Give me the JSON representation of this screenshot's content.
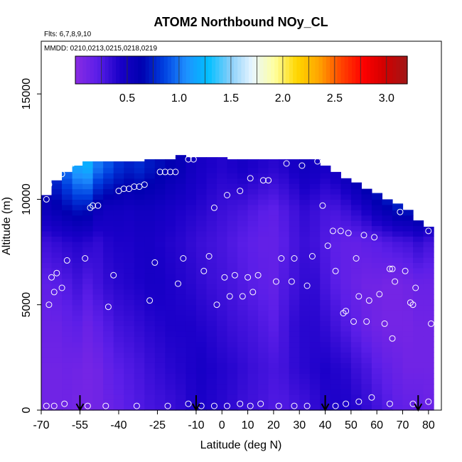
{
  "chart_data": {
    "type": "heatmap",
    "title": "ATOM2 Northbound NOy_CL",
    "notes": [
      "Flts: 6,7,8,9,10",
      "MMDD: 0210,0213,0215,0218,0219"
    ],
    "xlabel": "Latitude (deg N)",
    "ylabel": "Altitude (m)",
    "xlim": [
      -70,
      85
    ],
    "ylim": [
      0,
      17500
    ],
    "x_ticks": [
      -70,
      -55,
      -40,
      -25,
      -10,
      0,
      10,
      20,
      30,
      40,
      50,
      60,
      70,
      80
    ],
    "x_tick_labels": [
      "-70",
      "-55",
      "-40",
      "-25",
      "-10",
      "0",
      "10",
      "20",
      "30",
      "40",
      "50",
      "60",
      "70",
      "80"
    ],
    "y_ticks": [
      0,
      5000,
      10000,
      15000
    ],
    "y_tick_labels": [
      "0",
      "5000",
      "10000",
      "15000"
    ],
    "colorbar": {
      "range": [
        0,
        3.2
      ],
      "ticks": [
        0.5,
        1.0,
        1.5,
        2.0,
        2.5,
        3.0
      ],
      "tick_labels": [
        "0.5",
        "1.0",
        "1.5",
        "2.0",
        "2.5",
        "3.0"
      ],
      "colors": [
        "#8a2be2",
        "#5b1ee8",
        "#1a00c8",
        "#0000b0",
        "#0040e0",
        "#1e90ff",
        "#00bfff",
        "#87cefa",
        "#e8f6ff",
        "#ffffa0",
        "#ffd700",
        "#ffa500",
        "#ff4500",
        "#ff0000",
        "#d00000",
        "#a01818"
      ]
    },
    "field_columns": [
      {
        "x": -68,
        "top": 10200,
        "v": [
          0.12,
          0.12,
          0.15,
          0.2,
          0.32,
          0.55,
          0.7
        ]
      },
      {
        "x": -64,
        "top": 10900,
        "v": [
          0.12,
          0.12,
          0.15,
          0.22,
          0.35,
          0.6,
          0.85
        ]
      },
      {
        "x": -60,
        "top": 11300,
        "v": [
          0.12,
          0.13,
          0.18,
          0.25,
          0.38,
          0.65,
          1.0
        ]
      },
      {
        "x": -56,
        "top": 11600,
        "v": [
          0.1,
          0.12,
          0.2,
          0.3,
          0.4,
          0.7,
          1.15
        ]
      },
      {
        "x": -52,
        "top": 11800,
        "v": [
          0.1,
          0.1,
          0.15,
          0.25,
          0.38,
          0.68,
          1.2
        ]
      },
      {
        "x": -48,
        "top": 11800,
        "v": [
          0.12,
          0.12,
          0.2,
          0.3,
          0.35,
          0.55,
          1.0
        ]
      },
      {
        "x": -44,
        "top": 11800,
        "v": [
          0.15,
          0.18,
          0.25,
          0.35,
          0.4,
          0.5,
          0.9
        ]
      },
      {
        "x": -40,
        "top": 11800,
        "v": [
          0.18,
          0.22,
          0.3,
          0.38,
          0.42,
          0.5,
          0.8
        ]
      },
      {
        "x": -36,
        "top": 11800,
        "v": [
          0.22,
          0.25,
          0.32,
          0.4,
          0.42,
          0.48,
          0.75
        ]
      },
      {
        "x": -32,
        "top": 11800,
        "v": [
          0.25,
          0.28,
          0.35,
          0.42,
          0.45,
          0.5,
          0.78
        ]
      },
      {
        "x": -28,
        "top": 11900,
        "v": [
          0.28,
          0.32,
          0.38,
          0.45,
          0.45,
          0.5,
          0.72
        ]
      },
      {
        "x": -24,
        "top": 11900,
        "v": [
          0.3,
          0.35,
          0.4,
          0.45,
          0.42,
          0.48,
          0.68
        ]
      },
      {
        "x": -20,
        "top": 11900,
        "v": [
          0.32,
          0.38,
          0.42,
          0.42,
          0.4,
          0.45,
          0.62
        ]
      },
      {
        "x": -16,
        "top": 12100,
        "v": [
          0.35,
          0.4,
          0.42,
          0.4,
          0.38,
          0.42,
          0.58
        ]
      },
      {
        "x": -12,
        "top": 12000,
        "v": [
          0.4,
          0.42,
          0.42,
          0.38,
          0.35,
          0.4,
          0.5
        ]
      },
      {
        "x": -8,
        "top": 12000,
        "v": [
          0.42,
          0.45,
          0.4,
          0.35,
          0.32,
          0.38,
          0.45
        ]
      },
      {
        "x": -4,
        "top": 12000,
        "v": [
          0.4,
          0.42,
          0.38,
          0.32,
          0.3,
          0.35,
          0.42
        ]
      },
      {
        "x": 0,
        "top": 12000,
        "v": [
          0.38,
          0.4,
          0.35,
          0.3,
          0.28,
          0.32,
          0.4
        ]
      },
      {
        "x": 4,
        "top": 11900,
        "v": [
          0.35,
          0.38,
          0.32,
          0.28,
          0.25,
          0.3,
          0.42
        ]
      },
      {
        "x": 8,
        "top": 11900,
        "v": [
          0.32,
          0.35,
          0.3,
          0.25,
          0.22,
          0.28,
          0.45
        ]
      },
      {
        "x": 12,
        "top": 11900,
        "v": [
          0.3,
          0.32,
          0.28,
          0.22,
          0.2,
          0.25,
          0.42
        ]
      },
      {
        "x": 16,
        "top": 11900,
        "v": [
          0.28,
          0.3,
          0.25,
          0.2,
          0.18,
          0.22,
          0.4
        ]
      },
      {
        "x": 20,
        "top": 11900,
        "v": [
          0.25,
          0.28,
          0.22,
          0.18,
          0.18,
          0.2,
          0.38
        ]
      },
      {
        "x": 24,
        "top": 11900,
        "v": [
          0.25,
          0.3,
          0.28,
          0.25,
          0.22,
          0.25,
          0.4
        ]
      },
      {
        "x": 28,
        "top": 11900,
        "v": [
          0.28,
          0.35,
          0.35,
          0.3,
          0.28,
          0.3,
          0.45
        ]
      },
      {
        "x": 32,
        "top": 11900,
        "v": [
          0.3,
          0.38,
          0.38,
          0.35,
          0.32,
          0.35,
          0.5
        ]
      },
      {
        "x": 36,
        "top": 11900,
        "v": [
          0.35,
          0.4,
          0.38,
          0.35,
          0.3,
          0.32,
          0.48
        ]
      },
      {
        "x": 40,
        "top": 11600,
        "v": [
          0.4,
          0.42,
          0.35,
          0.28,
          0.25,
          0.28,
          0.45
        ]
      },
      {
        "x": 44,
        "top": 11300,
        "v": [
          0.42,
          0.4,
          0.3,
          0.22,
          0.2,
          0.28,
          0.5
        ]
      },
      {
        "x": 48,
        "top": 11000,
        "v": [
          0.42,
          0.38,
          0.25,
          0.18,
          0.18,
          0.32,
          0.6
        ]
      },
      {
        "x": 52,
        "top": 10800,
        "v": [
          0.4,
          0.32,
          0.2,
          0.15,
          0.18,
          0.38,
          0.72
        ]
      },
      {
        "x": 56,
        "top": 10500,
        "v": [
          0.35,
          0.28,
          0.15,
          0.12,
          0.2,
          0.45,
          0.85
        ]
      },
      {
        "x": 60,
        "top": 10300,
        "v": [
          0.3,
          0.22,
          0.12,
          0.12,
          0.22,
          0.55,
          0.95
        ]
      },
      {
        "x": 64,
        "top": 10000,
        "v": [
          0.25,
          0.18,
          0.1,
          0.1,
          0.25,
          0.62,
          1.05
        ]
      },
      {
        "x": 68,
        "top": 9800,
        "v": [
          0.2,
          0.15,
          0.1,
          0.1,
          0.28,
          0.7,
          1.1
        ]
      },
      {
        "x": 72,
        "top": 9500,
        "v": [
          0.18,
          0.12,
          0.1,
          0.12,
          0.3,
          0.72,
          1.15
        ]
      },
      {
        "x": 76,
        "top": 9000,
        "v": [
          0.18,
          0.12,
          0.12,
          0.15,
          0.35,
          0.75,
          1.2
        ]
      },
      {
        "x": 80,
        "top": 8700,
        "v": [
          0.15,
          0.12,
          0.12,
          0.15,
          0.3,
          0.7,
          1.2
        ]
      }
    ],
    "field_altitudes": [
      0,
      2000,
      4000,
      6000,
      8000,
      9500,
      11500
    ],
    "observations": [
      {
        "x": -68,
        "y": 10000
      },
      {
        "x": -67,
        "y": 10700
      },
      {
        "x": -67,
        "y": 5000
      },
      {
        "x": -66,
        "y": 6300
      },
      {
        "x": -65,
        "y": 5600
      },
      {
        "x": -64,
        "y": 6500
      },
      {
        "x": -62,
        "y": 5800
      },
      {
        "x": -62,
        "y": 11200
      },
      {
        "x": -60,
        "y": 7100
      },
      {
        "x": -57,
        "y": 11800
      },
      {
        "x": -58,
        "y": 11700
      },
      {
        "x": -53,
        "y": 7200
      },
      {
        "x": -51,
        "y": 9600
      },
      {
        "x": -50,
        "y": 9700
      },
      {
        "x": -48,
        "y": 9700
      },
      {
        "x": -44,
        "y": 4900
      },
      {
        "x": -42,
        "y": 6400
      },
      {
        "x": -40,
        "y": 10400
      },
      {
        "x": -38,
        "y": 10500
      },
      {
        "x": -36,
        "y": 10500
      },
      {
        "x": -34,
        "y": 10600
      },
      {
        "x": -32,
        "y": 10600
      },
      {
        "x": -30,
        "y": 10700
      },
      {
        "x": -28,
        "y": 5200
      },
      {
        "x": -26,
        "y": 7000
      },
      {
        "x": -24,
        "y": 11300
      },
      {
        "x": -22,
        "y": 11300
      },
      {
        "x": -20,
        "y": 11300
      },
      {
        "x": -18,
        "y": 11300
      },
      {
        "x": -17,
        "y": 6000
      },
      {
        "x": -15,
        "y": 7200
      },
      {
        "x": -13,
        "y": 11900
      },
      {
        "x": -11,
        "y": 11900
      },
      {
        "x": -7,
        "y": 6600
      },
      {
        "x": -5,
        "y": 7300
      },
      {
        "x": -3,
        "y": 9600
      },
      {
        "x": -2,
        "y": 5000
      },
      {
        "x": 1,
        "y": 6300
      },
      {
        "x": 2,
        "y": 10200
      },
      {
        "x": 3,
        "y": 5400
      },
      {
        "x": 5,
        "y": 6400
      },
      {
        "x": 7,
        "y": 10400
      },
      {
        "x": 8,
        "y": 5400
      },
      {
        "x": 10,
        "y": 6300
      },
      {
        "x": 11,
        "y": 11000
      },
      {
        "x": 12,
        "y": 5600
      },
      {
        "x": 14,
        "y": 6400
      },
      {
        "x": 16,
        "y": 10900
      },
      {
        "x": 18,
        "y": 10900
      },
      {
        "x": 21,
        "y": 6100
      },
      {
        "x": 23,
        "y": 7200
      },
      {
        "x": 25,
        "y": 11700
      },
      {
        "x": 27,
        "y": 6100
      },
      {
        "x": 28,
        "y": 7200
      },
      {
        "x": 31,
        "y": 11600
      },
      {
        "x": 33,
        "y": 5900
      },
      {
        "x": 35,
        "y": 7300
      },
      {
        "x": 37,
        "y": 11800
      },
      {
        "x": 39,
        "y": 9700
      },
      {
        "x": 41,
        "y": 7800
      },
      {
        "x": 43,
        "y": 8500
      },
      {
        "x": 44,
        "y": 6600
      },
      {
        "x": 46,
        "y": 8500
      },
      {
        "x": 47,
        "y": 4600
      },
      {
        "x": 48,
        "y": 4700
      },
      {
        "x": 49,
        "y": 8400
      },
      {
        "x": 51,
        "y": 4200
      },
      {
        "x": 52,
        "y": 7200
      },
      {
        "x": 53,
        "y": 5400
      },
      {
        "x": 55,
        "y": 8300
      },
      {
        "x": 56,
        "y": 4200
      },
      {
        "x": 57,
        "y": 5200
      },
      {
        "x": 59,
        "y": 8200
      },
      {
        "x": 61,
        "y": 5500
      },
      {
        "x": 63,
        "y": 4100
      },
      {
        "x": 65,
        "y": 6700
      },
      {
        "x": 66,
        "y": 6700
      },
      {
        "x": 66,
        "y": 3400
      },
      {
        "x": 67,
        "y": 6100
      },
      {
        "x": 69,
        "y": 9400
      },
      {
        "x": 71,
        "y": 6600
      },
      {
        "x": 73,
        "y": 5100
      },
      {
        "x": 74,
        "y": 5000
      },
      {
        "x": 75,
        "y": 5800
      },
      {
        "x": 76,
        "y": 9400
      },
      {
        "x": 80,
        "y": 8500
      },
      {
        "x": 81,
        "y": 4100
      },
      {
        "x": -68,
        "y": 200
      },
      {
        "x": -65,
        "y": 200
      },
      {
        "x": -61,
        "y": 300
      },
      {
        "x": -52,
        "y": 200
      },
      {
        "x": -45,
        "y": 200
      },
      {
        "x": -33,
        "y": 200
      },
      {
        "x": -21,
        "y": 200
      },
      {
        "x": -13,
        "y": 300
      },
      {
        "x": -8,
        "y": 200
      },
      {
        "x": -3,
        "y": 200
      },
      {
        "x": 2,
        "y": 200
      },
      {
        "x": 7,
        "y": 300
      },
      {
        "x": 11,
        "y": 200
      },
      {
        "x": 15,
        "y": 300
      },
      {
        "x": 22,
        "y": 200
      },
      {
        "x": 28,
        "y": 200
      },
      {
        "x": 33,
        "y": 200
      },
      {
        "x": 44,
        "y": 200
      },
      {
        "x": 48,
        "y": 300
      },
      {
        "x": 53,
        "y": 400
      },
      {
        "x": 58,
        "y": 600
      },
      {
        "x": 65,
        "y": 300
      },
      {
        "x": 74,
        "y": 300
      },
      {
        "x": 80,
        "y": 400
      }
    ],
    "arrows_x": [
      -55,
      -10,
      40,
      76
    ]
  }
}
